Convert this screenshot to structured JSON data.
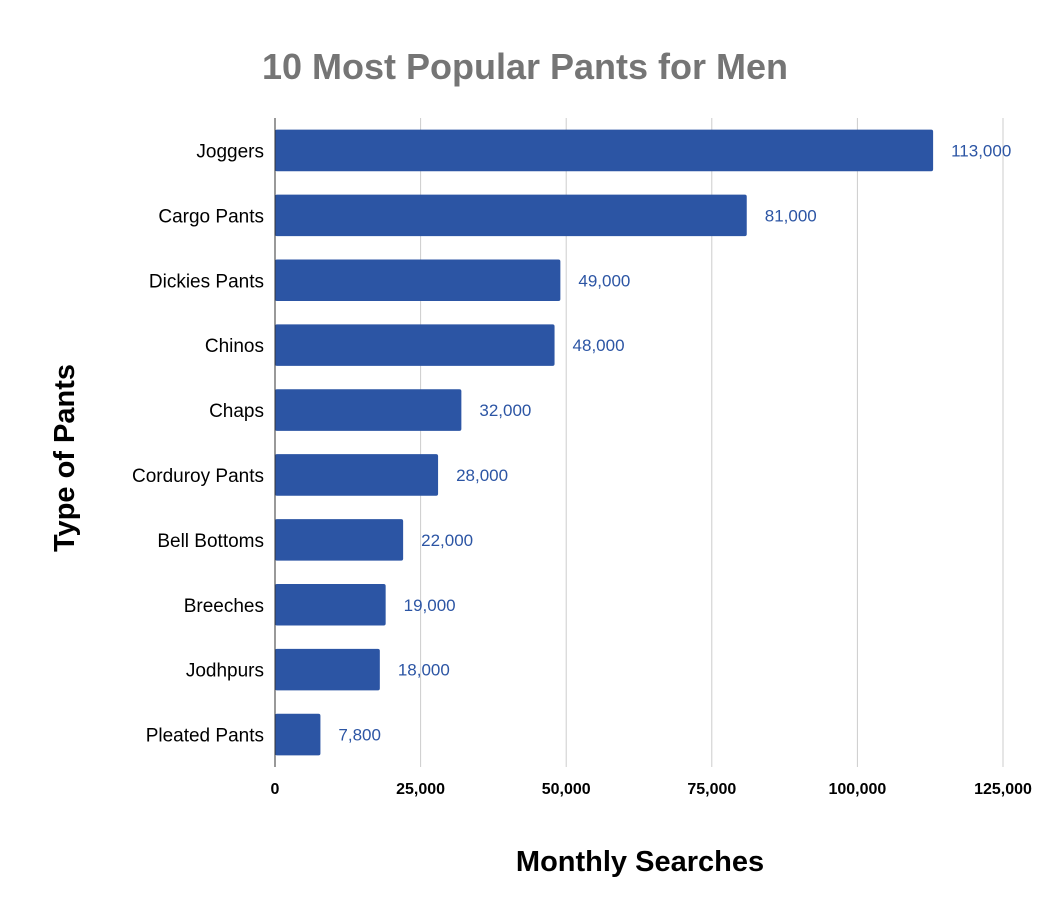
{
  "chart_data": {
    "type": "bar",
    "orientation": "horizontal",
    "title": "10 Most Popular Pants for Men",
    "xlabel": "Monthly Searches",
    "ylabel": "Type of Pants",
    "categories": [
      "Joggers",
      "Cargo Pants",
      "Dickies Pants",
      "Chinos",
      "Chaps",
      "Corduroy Pants",
      "Bell Bottoms",
      "Breeches",
      "Jodhpurs",
      "Pleated Pants"
    ],
    "values": [
      113000,
      81000,
      49000,
      48000,
      32000,
      28000,
      22000,
      19000,
      18000,
      7800
    ],
    "value_labels": [
      "113,000",
      "81,000",
      "49,000",
      "48,000",
      "32,000",
      "28,000",
      "22,000",
      "19,000",
      "18,000",
      "7,800"
    ],
    "xlim": [
      0,
      125000
    ],
    "x_ticks": [
      0,
      25000,
      50000,
      75000,
      100000,
      125000
    ],
    "x_tick_labels": [
      "0",
      "25,000",
      "50,000",
      "75,000",
      "100,000",
      "125,000"
    ],
    "grid": true,
    "legend": "none",
    "bar_color": "#2c55a4",
    "title_color": "#757575"
  }
}
